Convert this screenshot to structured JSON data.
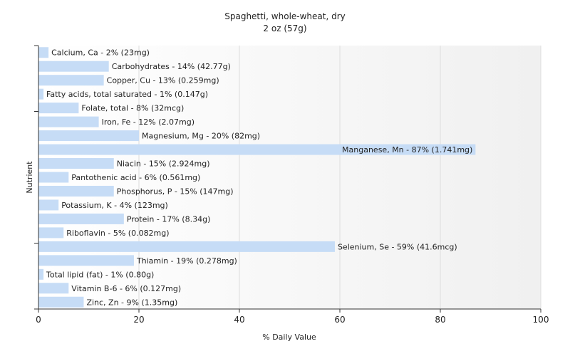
{
  "chart_data": {
    "type": "bar",
    "orientation": "horizontal",
    "title": "Spaghetti, whole-wheat, dry",
    "subtitle": "2 oz (57g)",
    "xlabel": "% Daily Value",
    "ylabel": "Nutrient",
    "xlim": [
      0,
      100
    ],
    "xticks": [
      0,
      20,
      40,
      60,
      80,
      100
    ],
    "grid": true,
    "bar_color": "#c6dcf6",
    "bars": [
      {
        "label": "Calcium, Ca - 2% (23mg)",
        "value": 2
      },
      {
        "label": "Carbohydrates - 14% (42.77g)",
        "value": 14
      },
      {
        "label": "Copper, Cu - 13% (0.259mg)",
        "value": 13
      },
      {
        "label": "Fatty acids, total saturated - 1% (0.147g)",
        "value": 1
      },
      {
        "label": "Folate, total - 8% (32mcg)",
        "value": 8
      },
      {
        "label": "Iron, Fe - 12% (2.07mg)",
        "value": 12
      },
      {
        "label": "Magnesium, Mg - 20% (82mg)",
        "value": 20
      },
      {
        "label": "Manganese, Mn - 87% (1.741mg)",
        "value": 87
      },
      {
        "label": "Niacin - 15% (2.924mg)",
        "value": 15
      },
      {
        "label": "Pantothenic acid - 6% (0.561mg)",
        "value": 6
      },
      {
        "label": "Phosphorus, P - 15% (147mg)",
        "value": 15
      },
      {
        "label": "Potassium, K - 4% (123mg)",
        "value": 4
      },
      {
        "label": "Protein - 17% (8.34g)",
        "value": 17
      },
      {
        "label": "Riboflavin - 5% (0.082mg)",
        "value": 5
      },
      {
        "label": "Selenium, Se - 59% (41.6mcg)",
        "value": 59
      },
      {
        "label": "Thiamin - 19% (0.278mg)",
        "value": 19
      },
      {
        "label": "Total lipid (fat) - 1% (0.80g)",
        "value": 1
      },
      {
        "label": "Vitamin B-6 - 6% (0.127mg)",
        "value": 6
      },
      {
        "label": "Zinc, Zn - 9% (1.35mg)",
        "value": 9
      }
    ]
  }
}
